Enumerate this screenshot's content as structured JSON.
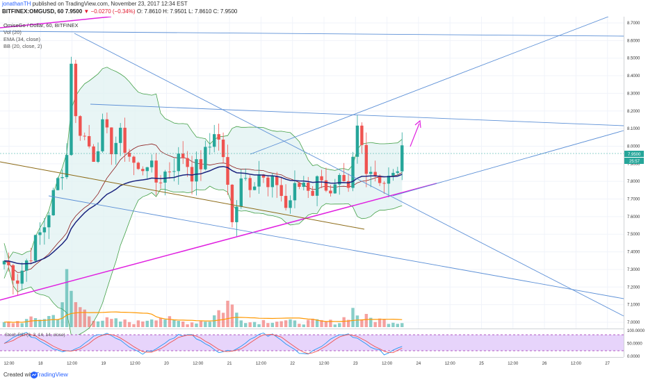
{
  "header": {
    "author": "jonathanTH",
    "published": "published on TradingView.com, November 23, 2017 12:34 EST",
    "symbol_line": "BITFINEX:OMGUSD, 60",
    "last": "7.9500",
    "change": "▼ −0.0270 (−0.34%)",
    "ohlc": "O: 7.8610 H: 7.9501 L: 7.8610 C: 7.9500"
  },
  "legend": {
    "symbol": "OmiseGo / Dollar, 60, BITFINEX",
    "vol": "Vol (20)",
    "ema": "EMA (34, close)",
    "bb": "BB (20, close, 2)"
  },
  "rsi_title": "Stoch RSI (3, 3, 14, 14, close)",
  "footer": {
    "created_with": "Created with",
    "brand": "TradingView"
  },
  "colors": {
    "up": "#26a69a",
    "down": "#ef5350",
    "bb_band": "#43a047",
    "bb_fill": "#e0f2f1",
    "ema": "#1a237e",
    "basis": "#8b1a1a",
    "trend_blue": "#5b8fd6",
    "trend_magenta": "#e020e0",
    "trend_brown": "#8b6914",
    "vol_ma": "#ff9800",
    "rsi_fill": "#e7d4fb",
    "rsi_k": "#2196f3",
    "rsi_d": "#ef5350"
  },
  "chart_data": {
    "type": "candlestick",
    "title": "OmiseGo / Dollar, 60, BITFINEX",
    "x_ticks": [
      "12:00",
      "18",
      "12:00",
      "19",
      "12:00",
      "20",
      "12:00",
      "21",
      "12:00",
      "22",
      "12:00",
      "23",
      "12:00",
      "24",
      "12:00",
      "25",
      "12:00",
      "26",
      "12:00",
      "27"
    ],
    "y_ticks": [
      "8.7000",
      "8.6000",
      "8.5000",
      "8.4000",
      "8.3000",
      "8.2000",
      "8.1000",
      "8.0000",
      "7.9000",
      "7.8000",
      "7.7000",
      "7.6000",
      "7.5000",
      "7.4000",
      "7.3000",
      "7.2000",
      "7.1000",
      "7.0000"
    ],
    "ylim": [
      6.98,
      8.72
    ],
    "last_price_label": "7.9500",
    "countdown_label": "25:57",
    "rsi_ticks": [
      "100.0000",
      "50.0000",
      "0.0000"
    ],
    "rsi_range": [
      0,
      100
    ],
    "price_keypoints": [
      [
        0,
        7.35
      ],
      [
        3,
        7.25
      ],
      [
        6,
        7.4
      ],
      [
        9,
        7.55
      ],
      [
        12,
        7.8
      ],
      [
        14,
        7.95
      ],
      [
        15,
        8.5
      ],
      [
        16,
        8.15
      ],
      [
        18,
        8.05
      ],
      [
        20,
        7.95
      ],
      [
        22,
        8.1
      ],
      [
        24,
        8.0
      ],
      [
        26,
        8.05
      ],
      [
        28,
        7.95
      ],
      [
        30,
        7.85
      ],
      [
        32,
        7.92
      ],
      [
        34,
        7.8
      ],
      [
        36,
        7.85
      ],
      [
        38,
        7.9
      ],
      [
        40,
        7.95
      ],
      [
        42,
        7.85
      ],
      [
        44,
        7.9
      ],
      [
        46,
        8.0
      ],
      [
        47,
        8.1
      ],
      [
        49,
        7.95
      ],
      [
        51,
        7.55
      ],
      [
        53,
        7.85
      ],
      [
        55,
        7.8
      ],
      [
        57,
        7.85
      ],
      [
        59,
        7.75
      ],
      [
        61,
        7.8
      ],
      [
        63,
        7.65
      ],
      [
        65,
        7.75
      ],
      [
        67,
        7.8
      ],
      [
        69,
        7.75
      ],
      [
        71,
        7.85
      ],
      [
        73,
        7.7
      ],
      [
        75,
        7.78
      ],
      [
        77,
        7.72
      ],
      [
        79,
        8.1
      ],
      [
        81,
        7.9
      ],
      [
        83,
        7.85
      ],
      [
        85,
        7.8
      ],
      [
        87,
        7.82
      ],
      [
        89,
        7.95
      ]
    ],
    "volume_keypoints": [
      [
        0,
        0.08
      ],
      [
        6,
        0.15
      ],
      [
        12,
        0.25
      ],
      [
        14,
        0.9
      ],
      [
        15,
        0.6
      ],
      [
        17,
        0.4
      ],
      [
        19,
        0.25
      ],
      [
        22,
        0.15
      ],
      [
        26,
        0.12
      ],
      [
        30,
        0.1
      ],
      [
        34,
        0.25
      ],
      [
        38,
        0.12
      ],
      [
        42,
        0.1
      ],
      [
        46,
        0.15
      ],
      [
        50,
        0.5
      ],
      [
        52,
        0.3
      ],
      [
        55,
        0.1
      ],
      [
        60,
        0.15
      ],
      [
        65,
        0.1
      ],
      [
        70,
        0.12
      ],
      [
        75,
        0.1
      ],
      [
        78,
        0.35
      ],
      [
        80,
        0.2
      ],
      [
        84,
        0.15
      ],
      [
        89,
        0.1
      ]
    ]
  }
}
